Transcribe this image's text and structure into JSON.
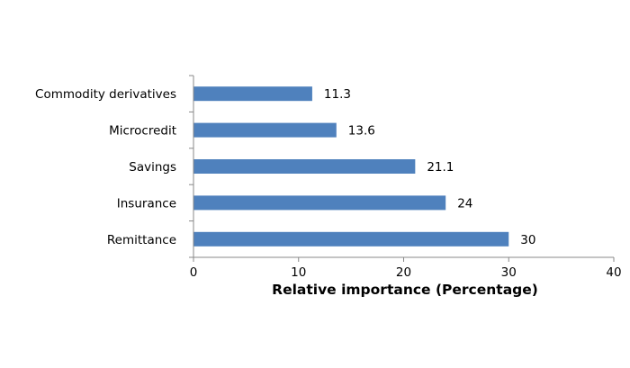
{
  "chart_data": {
    "type": "bar",
    "orientation": "horizontal",
    "categories": [
      "Commodity derivatives",
      "Microcredit",
      "Savings",
      "Insurance",
      "Remittance"
    ],
    "values": [
      11.3,
      13.6,
      21.1,
      24,
      30
    ],
    "data_labels": [
      "11.3",
      "13.6",
      "21.1",
      "24",
      "30"
    ],
    "title": "",
    "xlabel": "Relative importance (Percentage)",
    "ylabel": "",
    "xlim": [
      0,
      40
    ],
    "xticks": [
      0,
      10,
      20,
      30,
      40
    ],
    "xtick_labels": [
      "0",
      "10",
      "20",
      "30",
      "40"
    ],
    "grid": false,
    "legend": "none",
    "bar_color": "#4f81bd",
    "axis_color": "#888888"
  }
}
